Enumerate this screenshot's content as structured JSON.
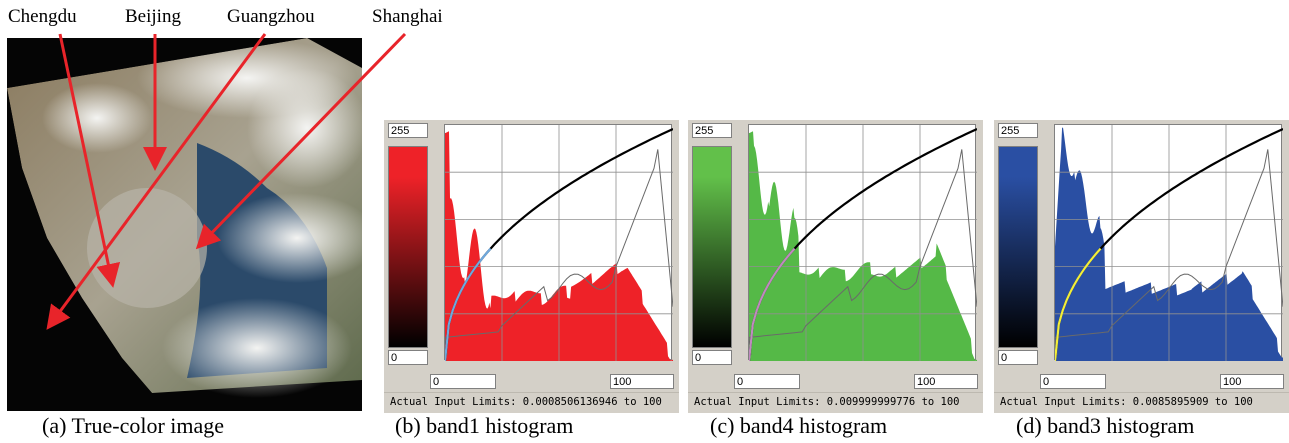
{
  "cities": [
    "Chengdu",
    "Beijing",
    "Guangzhou",
    "Shanghai"
  ],
  "panels": [
    {
      "id": "band1",
      "caption": "(b) band1 histogram",
      "color": "#ee2228",
      "grad_top": "#ee2228",
      "curve_tail_color": "#6fa8dc",
      "max_label": "255",
      "min_label": "0",
      "range_min": "0",
      "range_max": "100",
      "limits": "Actual Input Limits: 0.0008506136946 to 100"
    },
    {
      "id": "band4",
      "caption": "(c) band4 histogram",
      "color": "#55b947",
      "grad_top": "#62c04a",
      "curve_tail_color": "#c08abf",
      "max_label": "255",
      "min_label": "0",
      "range_min": "0",
      "range_max": "100",
      "limits": "Actual Input Limits: 0.009999999776 to 100"
    },
    {
      "id": "band3",
      "caption": "(d) band3 histogram",
      "color": "#2a4fa3",
      "grad_top": "#2a4fa3",
      "curve_tail_color": "#f2ee3a",
      "max_label": "255",
      "min_label": "0",
      "range_min": "0",
      "range_max": "100",
      "limits": "Actual Input Limits: 0.0085895909 to 100"
    }
  ],
  "true_color_caption": "(a) True-color image"
}
